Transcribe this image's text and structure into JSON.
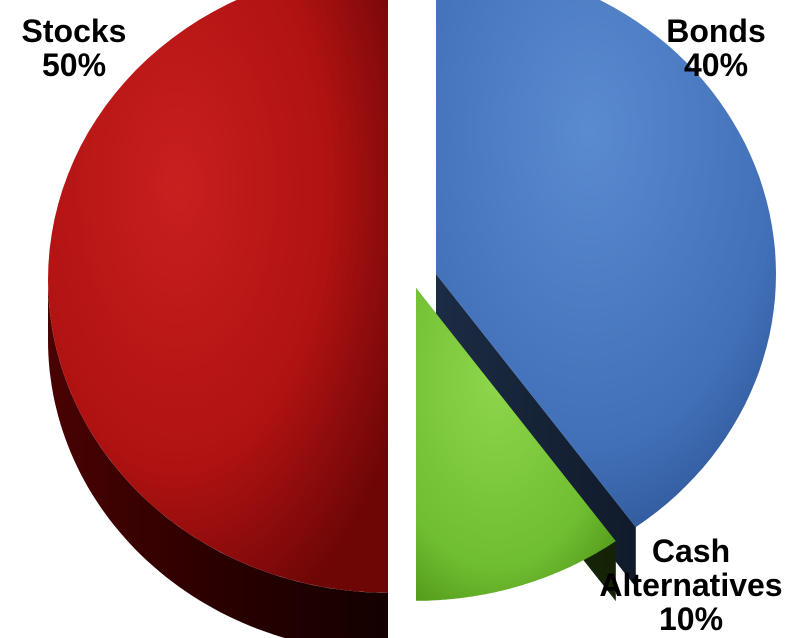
{
  "chart_data": {
    "type": "pie",
    "style": "3d-exploded",
    "slices": [
      {
        "name": "Stocks",
        "value": 50,
        "label": "50%",
        "color": "#c41818"
      },
      {
        "name": "Bonds",
        "value": 40,
        "label": "40%",
        "color": "#4f7fc4"
      },
      {
        "name": "Cash Alternatives",
        "value": 10,
        "label": "10%",
        "color": "#7cc83c"
      }
    ]
  },
  "labels": {
    "stocks": {
      "name": "Stocks",
      "pct": "50%"
    },
    "bonds": {
      "name": "Bonds",
      "pct": "40%"
    },
    "cash": {
      "name_line1": "Cash",
      "name_line2": "Alternatives",
      "pct": "10%"
    }
  }
}
